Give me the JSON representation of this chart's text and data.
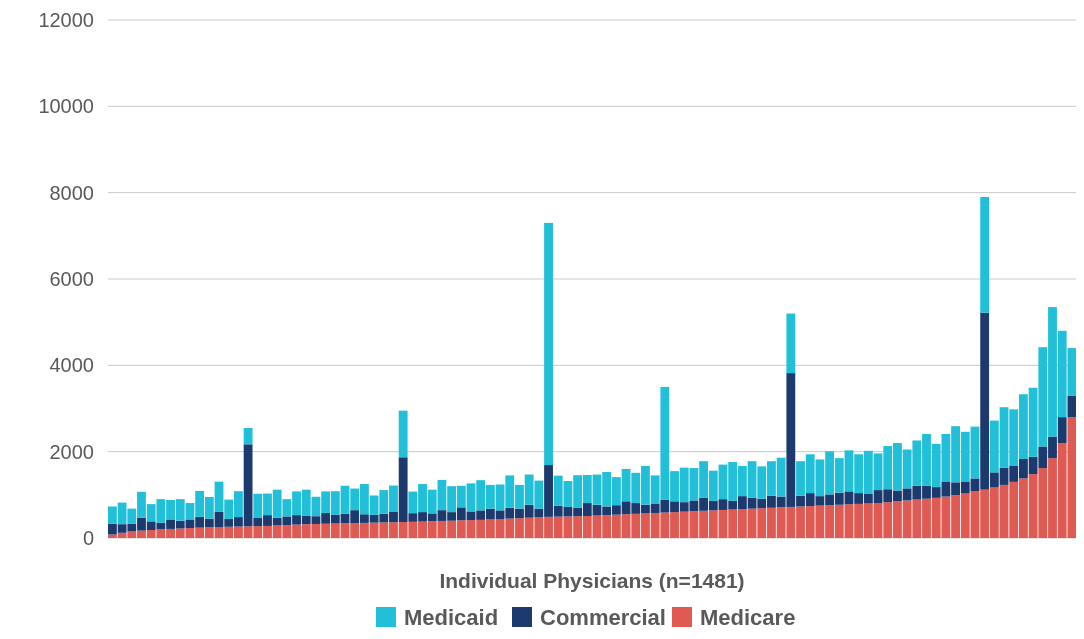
{
  "chart_data": {
    "type": "bar",
    "stacked": true,
    "xlabel": "Individual Physicians (n=1481)",
    "categories": [
      null,
      null,
      null,
      null,
      null,
      null,
      null,
      null,
      null,
      null,
      null,
      null,
      null,
      null,
      null,
      null,
      null,
      null,
      null,
      null,
      null,
      null,
      null,
      null,
      null,
      null,
      null,
      null,
      null,
      null,
      null,
      null,
      null,
      null,
      null,
      null,
      null,
      null,
      null,
      null,
      null,
      null,
      null,
      null,
      null,
      null,
      null,
      null,
      null,
      null,
      null,
      null,
      null,
      null,
      null,
      null,
      null,
      null,
      null,
      null,
      null,
      null,
      null,
      null,
      null,
      null,
      null,
      null,
      null,
      null,
      null,
      null,
      null,
      null,
      null,
      null,
      null,
      null,
      null,
      null,
      null,
      null,
      null,
      null,
      null,
      null,
      null,
      null,
      null,
      null,
      null,
      null,
      null,
      null,
      null,
      null,
      null,
      null,
      null,
      null
    ],
    "series": [
      {
        "name": "Medicare",
        "color": "#e05a54",
        "values": [
          80,
          120,
          150,
          170,
          185,
          200,
          210,
          220,
          230,
          240,
          250,
          255,
          260,
          265,
          270,
          275,
          280,
          290,
          300,
          310,
          320,
          325,
          330,
          335,
          340,
          345,
          350,
          355,
          360,
          365,
          370,
          375,
          380,
          390,
          395,
          400,
          410,
          415,
          420,
          430,
          440,
          450,
          460,
          470,
          480,
          490,
          495,
          500,
          505,
          510,
          520,
          530,
          540,
          550,
          560,
          570,
          580,
          590,
          600,
          610,
          620,
          630,
          640,
          650,
          660,
          670,
          680,
          690,
          700,
          710,
          720,
          730,
          740,
          750,
          760,
          770,
          780,
          790,
          800,
          810,
          830,
          850,
          870,
          890,
          910,
          930,
          960,
          990,
          1030,
          1080,
          1120,
          1170,
          1230,
          1300,
          1380,
          1480,
          1620,
          1850,
          2200,
          2800
        ]
      },
      {
        "name": "Commercial",
        "color": "#1c3a6e",
        "values": [
          250,
          200,
          180,
          300,
          200,
          150,
          220,
          180,
          200,
          250,
          200,
          350,
          180,
          220,
          1900,
          200,
          250,
          180,
          200,
          220,
          200,
          180,
          250,
          200,
          220,
          300,
          200,
          180,
          200,
          250,
          1500,
          200,
          220,
          180,
          250,
          200,
          300,
          200,
          220,
          250,
          200,
          250,
          220,
          300,
          200,
          1200,
          250,
          220,
          200,
          300,
          250,
          200,
          220,
          300,
          250,
          200,
          220,
          300,
          250,
          220,
          250,
          300,
          220,
          250,
          200,
          300,
          250,
          220,
          280,
          250,
          3100,
          250,
          300,
          220,
          250,
          280,
          300,
          250,
          220,
          300,
          300,
          250,
          280,
          320,
          300,
          250,
          350,
          300,
          280,
          300,
          4100,
          350,
          400,
          380,
          450,
          400,
          500,
          500,
          600,
          500
        ]
      },
      {
        "name": "Medicaid",
        "color": "#22c0d8",
        "values": [
          400,
          500,
          350,
          600,
          400,
          550,
          450,
          500,
          380,
          600,
          500,
          700,
          450,
          600,
          380,
          550,
          500,
          650,
          400,
          550,
          600,
          450,
          500,
          550,
          650,
          500,
          700,
          450,
          550,
          600,
          1080,
          500,
          650,
          550,
          700,
          600,
          500,
          650,
          700,
          550,
          600,
          750,
          550,
          700,
          650,
          5610,
          700,
          600,
          750,
          650,
          700,
          800,
          650,
          750,
          700,
          900,
          650,
          2610,
          700,
          800,
          750,
          850,
          700,
          800,
          900,
          700,
          850,
          750,
          800,
          900,
          1380,
          800,
          900,
          850,
          1000,
          800,
          950,
          900,
          1000,
          850,
          1000,
          1100,
          900,
          1050,
          1200,
          1000,
          1100,
          1300,
          1150,
          1200,
          2680,
          1200,
          1400,
          1300,
          1500,
          1600,
          2300,
          3000,
          2000,
          1100
        ]
      }
    ],
    "ylim": [
      0,
      12000
    ],
    "yticks": [
      0,
      2000,
      4000,
      6000,
      8000,
      10000,
      12000
    ],
    "grid": "y",
    "legend": "bottom"
  }
}
